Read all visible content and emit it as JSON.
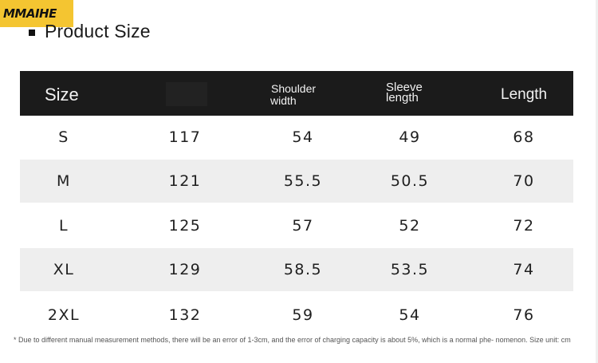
{
  "brand": {
    "logo_text": "MMAIHE"
  },
  "heading": {
    "title": "Product Size"
  },
  "table": {
    "headers": {
      "size": "Size",
      "shoulder_line1": "Shoulder",
      "shoulder_line2": "width",
      "sleeve_line1": "Sleeve",
      "sleeve_line2": "length",
      "length": "Length"
    },
    "rows": [
      {
        "size": "S",
        "chest": "117",
        "shoulder": "54",
        "sleeve": "49",
        "length": "68"
      },
      {
        "size": "M",
        "chest": "121",
        "shoulder": "55.5",
        "sleeve": "50.5",
        "length": "70"
      },
      {
        "size": "L",
        "chest": "125",
        "shoulder": "57",
        "sleeve": "52",
        "length": "72"
      },
      {
        "size": "XL",
        "chest": "129",
        "shoulder": "58.5",
        "sleeve": "53.5",
        "length": "74"
      },
      {
        "size": "2XL",
        "chest": "132",
        "shoulder": "59",
        "sleeve": "54",
        "length": "76"
      }
    ]
  },
  "footnote": "* Due to different manual measurement methods, there will be an error of 1-3cm, and the error of charging capacity is about 5%, which is a normal phe- nomenon. Size unit: cm",
  "colors": {
    "logo_bg": "#f4c531",
    "header_bg": "#1b1b1b",
    "shaded_row": "#eeeeee"
  }
}
